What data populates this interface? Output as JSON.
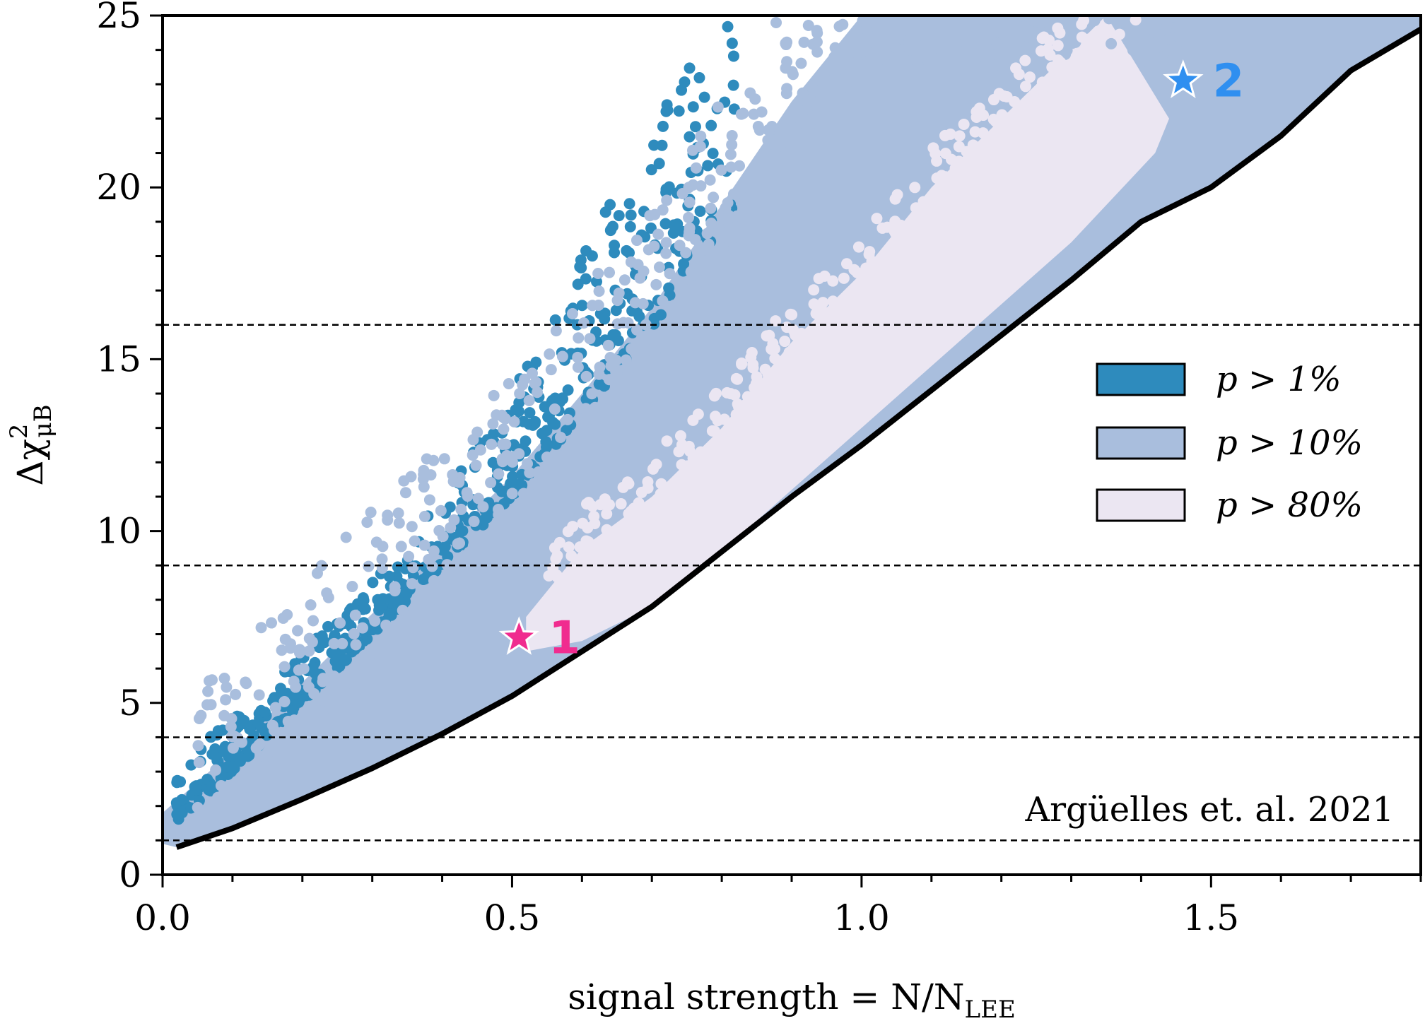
{
  "chart_data": {
    "type": "scatter",
    "xlabel": "signal strength = N/N",
    "xlabel_sub": "LEE",
    "ylabel": "Δχ",
    "ylabel_sup": "2",
    "ylabel_sub": "μB",
    "xlim": [
      0.0,
      1.8
    ],
    "ylim": [
      0,
      25
    ],
    "xticks": [
      "0.0",
      "0.5",
      "1.0",
      "1.5"
    ],
    "xtick_values": [
      0.0,
      0.5,
      1.0,
      1.5
    ],
    "yticks": [
      "0",
      "5",
      "10",
      "15",
      "20",
      "25"
    ],
    "ytick_values": [
      0,
      5,
      10,
      15,
      20,
      25
    ],
    "reference_lines_y": [
      1,
      4,
      9,
      16
    ],
    "annotation": "Argüelles et. al. 2021",
    "legend_position": "right",
    "series": [
      {
        "name": "p > 1%",
        "color": "#2e8bbd"
      },
      {
        "name": "p > 10%",
        "color": "#a9bedd"
      },
      {
        "name": "p > 80%",
        "color": "#ebe6f2"
      }
    ],
    "region_boundaries": {
      "p1_upper": [
        [
          0.0,
          3.0
        ],
        [
          0.1,
          4.5
        ],
        [
          0.2,
          6.5
        ],
        [
          0.3,
          8.5
        ],
        [
          0.4,
          11.0
        ],
        [
          0.5,
          14.0
        ],
        [
          0.6,
          18.0
        ],
        [
          0.7,
          22.0
        ],
        [
          0.78,
          25.0
        ]
      ],
      "p10_upper": [
        [
          0.0,
          1.8
        ],
        [
          0.1,
          3.6
        ],
        [
          0.2,
          5.6
        ],
        [
          0.3,
          7.6
        ],
        [
          0.4,
          9.6
        ],
        [
          0.5,
          11.6
        ],
        [
          0.6,
          14.0
        ],
        [
          0.7,
          16.5
        ],
        [
          0.8,
          19.5
        ],
        [
          0.9,
          22.5
        ],
        [
          1.0,
          25.0
        ]
      ],
      "p80_upper": [
        [
          0.52,
          7.5
        ],
        [
          0.6,
          9.5
        ],
        [
          0.7,
          11.0
        ],
        [
          0.8,
          13.0
        ],
        [
          0.9,
          15.5
        ],
        [
          1.0,
          17.5
        ],
        [
          1.1,
          20.0
        ],
        [
          1.2,
          22.0
        ],
        [
          1.3,
          24.0
        ],
        [
          1.35,
          25.0
        ]
      ],
      "p80_lower": [
        [
          0.52,
          6.5
        ],
        [
          0.6,
          6.8
        ],
        [
          0.7,
          7.8
        ],
        [
          0.8,
          9.4
        ],
        [
          0.9,
          11.2
        ],
        [
          1.0,
          13.0
        ],
        [
          1.1,
          14.8
        ],
        [
          1.2,
          16.6
        ],
        [
          1.3,
          18.4
        ],
        [
          1.42,
          21.0
        ],
        [
          1.44,
          22.0
        ]
      ]
    },
    "lower_bound_curve": {
      "x": [
        0.02,
        0.1,
        0.2,
        0.3,
        0.4,
        0.5,
        0.6,
        0.7,
        0.8,
        0.9,
        1.0,
        1.1,
        1.2,
        1.3,
        1.4,
        1.5,
        1.6,
        1.7,
        1.8
      ],
      "y": [
        0.8,
        1.35,
        2.2,
        3.1,
        4.1,
        5.2,
        6.5,
        7.8,
        9.4,
        11.0,
        12.5,
        14.1,
        15.7,
        17.3,
        19.0,
        20.0,
        21.5,
        23.4,
        24.6
      ]
    },
    "highlighted_points": [
      {
        "label": "1",
        "x": 0.51,
        "y": 6.9,
        "color": "#f02c8f"
      },
      {
        "label": "2",
        "x": 1.46,
        "y": 23.1,
        "color": "#2f8ff0"
      }
    ]
  }
}
